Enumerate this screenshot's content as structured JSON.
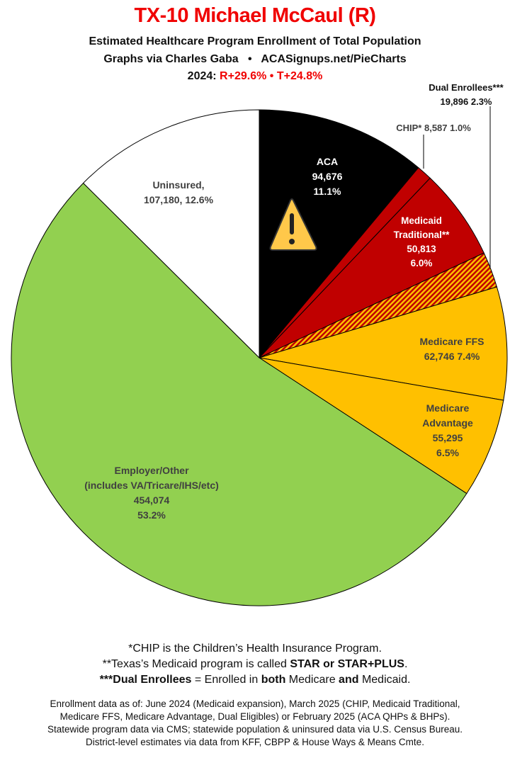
{
  "header": {
    "title": "TX-10 Michael McCaul (R)",
    "subtitle": "Estimated Healthcare Program Enrollment of Total Population",
    "credit_left": "Graphs via Charles Gaba",
    "credit_sep": "•",
    "credit_right": "ACASignups.net/PieCharts",
    "year_label": "2024:",
    "margin_r": "R+29.6%",
    "margin_sep": "•",
    "margin_t": "T+24.8%"
  },
  "chart_data": {
    "type": "pie",
    "start": "12 o'clock, clockwise",
    "slices": [
      {
        "name": "ACA",
        "label_lines": [
          "ACA",
          "94,676",
          "11.1%"
        ],
        "value": 94676,
        "percent": 11.1,
        "color": "#000000"
      },
      {
        "name": "CHIP*",
        "label_lines": [
          "CHIP* 8,587 1.0%"
        ],
        "value": 8587,
        "percent": 1.0,
        "color": "#C00000"
      },
      {
        "name": "Medicaid Traditional**",
        "label_lines": [
          "Medicaid",
          "Traditional**",
          "50,813",
          "6.0%"
        ],
        "value": 50813,
        "percent": 6.0,
        "color": "#C00000"
      },
      {
        "name": "Dual Enrollees***",
        "label_lines": [
          "Dual Enrollees***",
          "19,896 2.3%"
        ],
        "value": 19896,
        "percent": 2.3,
        "color": "hatched #C00000/#FFC000"
      },
      {
        "name": "Medicare FFS",
        "label_lines": [
          "Medicare FFS",
          "62,746 7.4%"
        ],
        "value": 62746,
        "percent": 7.4,
        "color": "#FFC000"
      },
      {
        "name": "Medicare Advantage",
        "label_lines": [
          "Medicare",
          "Advantage",
          "55,295",
          "6.5%"
        ],
        "value": 55295,
        "percent": 6.5,
        "color": "#FFC000"
      },
      {
        "name": "Employer/Other",
        "label_lines": [
          "Employer/Other",
          "(includes VA/Tricare/IHS/etc)",
          "454,074",
          "53.2%"
        ],
        "value": 454074,
        "percent": 53.2,
        "color": "#92D050"
      },
      {
        "name": "Uninsured",
        "label_lines": [
          "Uninsured,",
          "107,180, 12.6%"
        ],
        "value": 107180,
        "percent": 12.6,
        "color": "#FFFFFF"
      }
    ],
    "annotation_icon": "warning-icon"
  },
  "notes": {
    "chip": "*CHIP is the Children’s Health Insurance Program.",
    "medicaid_pre": "**Texas’s Medicaid program is called ",
    "medicaid_bold": "STAR or STAR+PLUS",
    "medicaid_post": ".",
    "dual_bold": "***Dual Enrollees",
    "dual_mid1": " = Enrolled in ",
    "dual_both": "both",
    "dual_mid2": " Medicare ",
    "dual_and": "and",
    "dual_end": " Medicaid.",
    "source_lines": [
      "Enrollment data as of: June 2024 (Medicaid expansion), March 2025 (CHIP, Medicaid Traditional,",
      "Medicare FFS, Medicare Advantage, Dual Eligibles) or February 2025 (ACA QHPs & BHPs).",
      "Statewide program data via CMS; statewide population & uninsured data via U.S. Census Bureau.",
      "District-level estimates via data from KFF, CBPP & House Ways & Means Cmte."
    ]
  }
}
